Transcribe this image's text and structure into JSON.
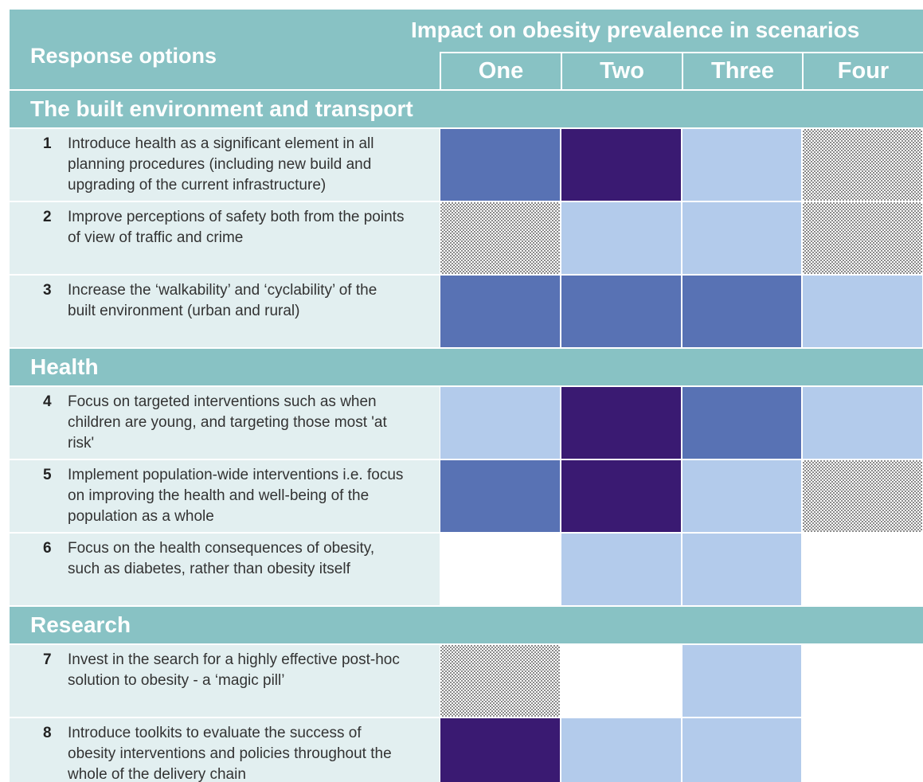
{
  "header": {
    "left": "Response options",
    "scenarios_title": "Impact on obesity prevalence in scenarios",
    "columns": [
      "One",
      "Two",
      "Three",
      "Four"
    ]
  },
  "sections": [
    {
      "title": "The built environment and transport",
      "rows": [
        {
          "number": "1",
          "text": "Introduce health as a significant element in all planning procedures (including new build and upgrading of the current infrastructure)",
          "cells": [
            "#5872b4",
            "#3a1a72",
            "#b3cbeb",
            "checker"
          ]
        },
        {
          "number": "2",
          "text": "Improve perceptions of safety both from the points of view of traffic and crime",
          "cells": [
            "checker",
            "#b3cbeb",
            "#b3cbeb",
            "checker"
          ]
        },
        {
          "number": "3",
          "text": "Increase the ‘walkability’ and ‘cyclability’ of the built environment (urban and rural)",
          "cells": [
            "#5872b4",
            "#5872b4",
            "#5872b4",
            "#b3cbeb"
          ]
        }
      ]
    },
    {
      "title": "Health",
      "rows": [
        {
          "number": "4",
          "text": "Focus on targeted interventions such as when children are young, and targeting those most 'at risk'",
          "cells": [
            "#b3cbeb",
            "#3a1a72",
            "#5872b4",
            "#b3cbeb"
          ]
        },
        {
          "number": "5",
          "text": "Implement population-wide interventions i.e. focus on improving the health and well-being of the population as a whole",
          "cells": [
            "#5872b4",
            "#3a1a72",
            "#b3cbeb",
            "checker"
          ]
        },
        {
          "number": "6",
          "text": "Focus on the health consequences of obesity, such as diabetes, rather than obesity itself",
          "cells": [
            "#ffffff",
            "#b3cbeb",
            "#b3cbeb",
            "#ffffff"
          ]
        }
      ]
    },
    {
      "title": "Research",
      "rows": [
        {
          "number": "7",
          "text": "Invest in the search for a highly effective post-hoc solution to obesity - a ‘magic pill’",
          "cells": [
            "checker",
            "#ffffff",
            "#b3cbeb",
            "#ffffff"
          ]
        },
        {
          "number": "8",
          "text": "Introduce toolkits to evaluate the success of obesity interventions and policies throughout the whole of the delivery chain",
          "cells": [
            "#3a1a72",
            "#b3cbeb",
            "#b3cbeb",
            "#ffffff"
          ]
        }
      ]
    }
  ]
}
